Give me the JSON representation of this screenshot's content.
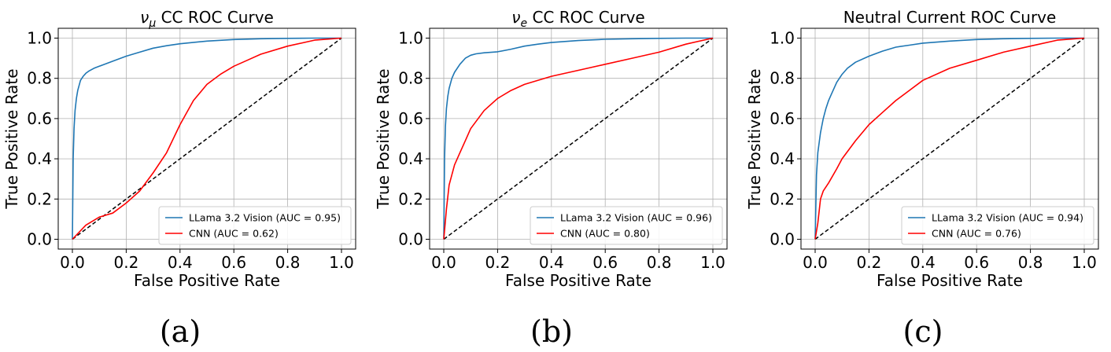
{
  "colors": {
    "series_1": "#1f77b4",
    "series_2": "#ff0000",
    "chance_line": "#000000",
    "grid": "#b0b0b0"
  },
  "panel_captions": [
    "(a)",
    "(b)",
    "(c)"
  ],
  "chart_data": [
    {
      "type": "line",
      "title_parts": [
        {
          "text": "ν",
          "italic": true
        },
        {
          "text": "μ",
          "italic": true,
          "subscript": true
        },
        {
          "text": " CC ROC Curve",
          "italic": false
        }
      ],
      "xlabel": "False Positive Rate",
      "ylabel": "True Positive Rate",
      "xlim": [
        0.0,
        1.0
      ],
      "ylim": [
        0.0,
        1.0
      ],
      "xticks": [
        "0.0",
        "0.2",
        "0.4",
        "0.6",
        "0.8",
        "1.0"
      ],
      "yticks": [
        "0.0",
        "0.2",
        "0.4",
        "0.6",
        "0.8",
        "1.0"
      ],
      "grid": true,
      "legend_position": "lower-right",
      "diagonal_reference": true,
      "series": [
        {
          "name": "LLama 3.2 Vision (AUC = 0.95)",
          "color": "#1f77b4",
          "x": [
            0.0,
            0.003,
            0.006,
            0.01,
            0.015,
            0.02,
            0.03,
            0.04,
            0.05,
            0.06,
            0.08,
            0.1,
            0.12,
            0.15,
            0.2,
            0.25,
            0.3,
            0.35,
            0.4,
            0.5,
            0.6,
            0.7,
            0.8,
            0.9,
            1.0
          ],
          "y": [
            0.0,
            0.4,
            0.55,
            0.64,
            0.7,
            0.74,
            0.79,
            0.81,
            0.825,
            0.835,
            0.85,
            0.86,
            0.87,
            0.885,
            0.91,
            0.93,
            0.95,
            0.962,
            0.972,
            0.985,
            0.993,
            0.997,
            0.999,
            1.0,
            1.0
          ]
        },
        {
          "name": "CNN (AUC = 0.62)",
          "color": "#ff0000",
          "x": [
            0.0,
            0.05,
            0.1,
            0.15,
            0.2,
            0.25,
            0.3,
            0.35,
            0.4,
            0.45,
            0.5,
            0.55,
            0.6,
            0.65,
            0.7,
            0.8,
            0.9,
            1.0
          ],
          "y": [
            0.0,
            0.07,
            0.11,
            0.13,
            0.18,
            0.24,
            0.33,
            0.43,
            0.57,
            0.69,
            0.77,
            0.82,
            0.86,
            0.89,
            0.92,
            0.96,
            0.99,
            1.0
          ]
        }
      ]
    },
    {
      "type": "line",
      "title_parts": [
        {
          "text": "ν",
          "italic": true
        },
        {
          "text": "e",
          "italic": true,
          "subscript": true
        },
        {
          "text": " CC ROC Curve",
          "italic": false
        }
      ],
      "xlabel": "False Positive Rate",
      "ylabel": "True Positive Rate",
      "xlim": [
        0.0,
        1.0
      ],
      "ylim": [
        0.0,
        1.0
      ],
      "xticks": [
        "0.0",
        "0.2",
        "0.4",
        "0.6",
        "0.8",
        "1.0"
      ],
      "yticks": [
        "0.0",
        "0.2",
        "0.4",
        "0.6",
        "0.8",
        "1.0"
      ],
      "grid": true,
      "legend_position": "lower-right",
      "diagonal_reference": true,
      "series": [
        {
          "name": "LLama 3.2 Vision (AUC = 0.96)",
          "color": "#1f77b4",
          "x": [
            0.0,
            0.003,
            0.006,
            0.01,
            0.015,
            0.02,
            0.03,
            0.04,
            0.06,
            0.08,
            0.1,
            0.12,
            0.15,
            0.2,
            0.25,
            0.3,
            0.35,
            0.4,
            0.5,
            0.6,
            0.7,
            0.8,
            0.9,
            1.0
          ],
          "y": [
            0.0,
            0.4,
            0.56,
            0.65,
            0.71,
            0.75,
            0.8,
            0.83,
            0.87,
            0.9,
            0.915,
            0.922,
            0.927,
            0.932,
            0.945,
            0.96,
            0.97,
            0.978,
            0.988,
            0.994,
            0.997,
            0.999,
            1.0,
            1.0
          ]
        },
        {
          "name": "CNN (AUC = 0.80)",
          "color": "#ff0000",
          "x": [
            0.0,
            0.01,
            0.02,
            0.04,
            0.06,
            0.08,
            0.1,
            0.15,
            0.2,
            0.25,
            0.3,
            0.4,
            0.5,
            0.6,
            0.7,
            0.8,
            0.9,
            1.0
          ],
          "y": [
            0.0,
            0.15,
            0.27,
            0.37,
            0.43,
            0.49,
            0.55,
            0.64,
            0.7,
            0.74,
            0.77,
            0.81,
            0.84,
            0.87,
            0.9,
            0.93,
            0.97,
            1.0
          ]
        }
      ]
    },
    {
      "type": "line",
      "title_parts": [
        {
          "text": "Neutral Current ROC Curve",
          "italic": false
        }
      ],
      "xlabel": "False Positive Rate",
      "ylabel": "True Positive Rate",
      "xlim": [
        0.0,
        1.0
      ],
      "ylim": [
        0.0,
        1.0
      ],
      "xticks": [
        "0.0",
        "0.2",
        "0.4",
        "0.6",
        "0.8",
        "1.0"
      ],
      "yticks": [
        "0.0",
        "0.2",
        "0.4",
        "0.6",
        "0.8",
        "1.0"
      ],
      "grid": true,
      "legend_position": "lower-right",
      "diagonal_reference": true,
      "series": [
        {
          "name": "LLama 3.2 Vision (AUC = 0.94)",
          "color": "#1f77b4",
          "x": [
            0.0,
            0.005,
            0.01,
            0.02,
            0.03,
            0.04,
            0.05,
            0.06,
            0.08,
            0.1,
            0.12,
            0.15,
            0.2,
            0.25,
            0.3,
            0.35,
            0.4,
            0.5,
            0.6,
            0.7,
            0.8,
            0.9,
            1.0
          ],
          "y": [
            0.0,
            0.32,
            0.43,
            0.53,
            0.6,
            0.65,
            0.69,
            0.72,
            0.78,
            0.82,
            0.85,
            0.88,
            0.91,
            0.935,
            0.955,
            0.965,
            0.975,
            0.985,
            0.993,
            0.997,
            0.999,
            1.0,
            1.0
          ]
        },
        {
          "name": "CNN (AUC = 0.76)",
          "color": "#ff0000",
          "x": [
            0.0,
            0.01,
            0.02,
            0.03,
            0.05,
            0.08,
            0.1,
            0.15,
            0.2,
            0.25,
            0.3,
            0.35,
            0.4,
            0.5,
            0.6,
            0.7,
            0.8,
            0.9,
            1.0
          ],
          "y": [
            0.0,
            0.08,
            0.2,
            0.24,
            0.28,
            0.35,
            0.4,
            0.49,
            0.57,
            0.63,
            0.69,
            0.74,
            0.79,
            0.85,
            0.89,
            0.93,
            0.96,
            0.99,
            1.0
          ]
        }
      ]
    }
  ]
}
